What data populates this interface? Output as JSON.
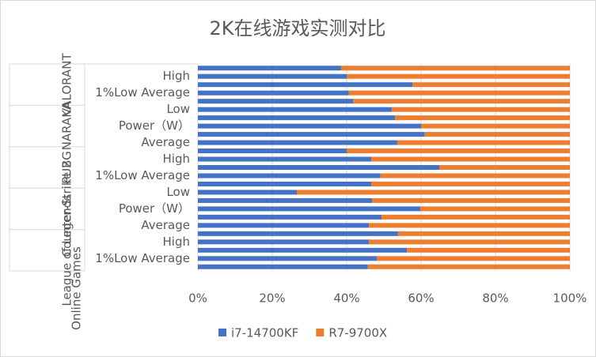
{
  "chart_data": {
    "type": "stacked_barh_100",
    "title": "2K在线游戏实测对比",
    "outer_group": "Online Games",
    "groups": [
      {
        "name": "VALORANT",
        "start": 0,
        "end": 4
      },
      {
        "name": "NARAKA",
        "start": 5,
        "end": 9
      },
      {
        "name": "PUBG",
        "start": 10,
        "end": 14
      },
      {
        "name": "Counter-Strike 2",
        "start": 15,
        "end": 19
      },
      {
        "name": "League of Legends",
        "start": 20,
        "end": 24
      }
    ],
    "categories": [
      null,
      "High",
      null,
      "1%Low Average",
      null,
      "Low",
      null,
      "Power（W）",
      null,
      "Average",
      null,
      "High",
      null,
      "1%Low Average",
      null,
      "Low",
      null,
      "Power（W）",
      null,
      "Average",
      null,
      "High",
      null,
      "1%Low Average",
      null
    ],
    "series": [
      {
        "name": "i7-14700KF",
        "color": "#4472c4",
        "values": [
          38.5,
          40,
          57.7,
          40.6,
          41.7,
          52.1,
          53,
          60,
          61,
          53.6,
          40,
          46.6,
          64.9,
          49.1,
          46.6,
          26.6,
          46.8,
          59.8,
          49.4,
          46,
          53.8,
          46,
          56.2,
          48.1,
          45.7
        ]
      },
      {
        "name": "R7-9700X",
        "color": "#ed7d31",
        "values": [
          61.5,
          60,
          42.3,
          59.4,
          58.3,
          47.9,
          47,
          40,
          39,
          46.4,
          60,
          53.4,
          35.1,
          50.9,
          53.4,
          73.4,
          53.2,
          40.2,
          50.6,
          54,
          46.2,
          54,
          43.8,
          51.9,
          54.3
        ]
      }
    ],
    "xlim": [
      0,
      100
    ],
    "xticks": [
      {
        "value": 0,
        "label": "0%"
      },
      {
        "value": 20,
        "label": "20%"
      },
      {
        "value": 40,
        "label": "40%"
      },
      {
        "value": 60,
        "label": "60%"
      },
      {
        "value": 80,
        "label": "80%"
      },
      {
        "value": 100,
        "label": "100%"
      }
    ],
    "grid": true,
    "legend": "bottom"
  }
}
